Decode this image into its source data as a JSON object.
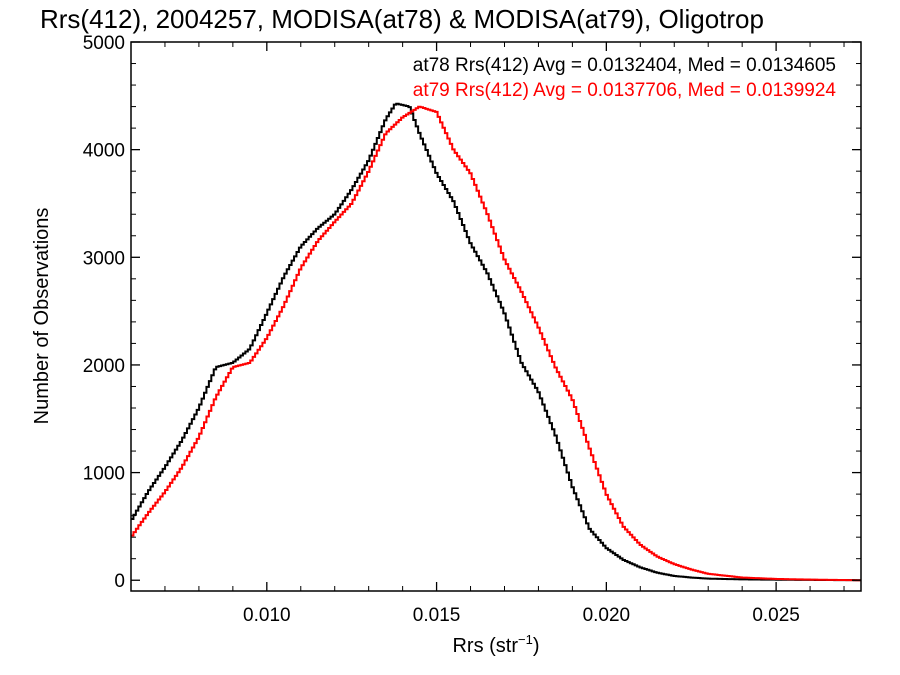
{
  "chart_data": {
    "type": "line",
    "title": "Rrs(412), 2004257, MODISA(at78) & MODISA(at79), Oligotrop",
    "xlabel": "Rrs (str",
    "xlabel_sup": "−1",
    "xlabel_close": ")",
    "ylabel": "Number of Observations",
    "xlim": [
      0.006,
      0.0275
    ],
    "ylim": [
      -100,
      5000
    ],
    "xticks": [
      0.01,
      0.015,
      0.02,
      0.025
    ],
    "xtick_labels": [
      "0.010",
      "0.015",
      "0.020",
      "0.025"
    ],
    "yticks": [
      0,
      1000,
      2000,
      3000,
      4000,
      5000
    ],
    "ytick_labels": [
      "0",
      "1000",
      "2000",
      "3000",
      "4000",
      "5000"
    ],
    "grid": false,
    "legend_position": "top-right",
    "series": [
      {
        "name": "at78",
        "color": "#000000",
        "legend_text": "at78 Rrs(412) Avg = 0.0132404, Med = 0.0134605",
        "x": [
          0.006,
          0.0065,
          0.007,
          0.0075,
          0.008,
          0.0085,
          0.009,
          0.0095,
          0.01,
          0.0105,
          0.011,
          0.0115,
          0.012,
          0.0125,
          0.013,
          0.0135,
          0.0138,
          0.0142,
          0.0145,
          0.015,
          0.0155,
          0.016,
          0.0165,
          0.017,
          0.0175,
          0.018,
          0.0185,
          0.019,
          0.0195,
          0.02,
          0.0205,
          0.021,
          0.0215,
          0.022,
          0.0225,
          0.023,
          0.024,
          0.025,
          0.026,
          0.0275
        ],
        "y": [
          550,
          820,
          1050,
          1300,
          1600,
          1980,
          2020,
          2150,
          2480,
          2820,
          3100,
          3270,
          3400,
          3630,
          3900,
          4280,
          4430,
          4400,
          4150,
          3780,
          3520,
          3130,
          2850,
          2480,
          2020,
          1750,
          1350,
          870,
          480,
          300,
          190,
          120,
          70,
          40,
          25,
          15,
          8,
          5,
          3,
          0
        ]
      },
      {
        "name": "at79",
        "color": "#ff0000",
        "legend_text": "at79 Rrs(412) Avg = 0.0137706, Med = 0.0139924",
        "x": [
          0.006,
          0.0065,
          0.007,
          0.0075,
          0.008,
          0.0085,
          0.009,
          0.0095,
          0.01,
          0.0105,
          0.011,
          0.0115,
          0.012,
          0.0125,
          0.013,
          0.0135,
          0.014,
          0.0145,
          0.015,
          0.0155,
          0.016,
          0.0165,
          0.017,
          0.0175,
          0.018,
          0.0185,
          0.019,
          0.0195,
          0.02,
          0.0205,
          0.021,
          0.0215,
          0.022,
          0.0225,
          0.023,
          0.024,
          0.025,
          0.026,
          0.0275
        ],
        "y": [
          400,
          620,
          820,
          1050,
          1330,
          1700,
          1980,
          2020,
          2250,
          2550,
          2900,
          3150,
          3330,
          3500,
          3800,
          4150,
          4300,
          4400,
          4350,
          4000,
          3780,
          3400,
          2980,
          2680,
          2350,
          1980,
          1680,
          1230,
          800,
          500,
          330,
          220,
          150,
          100,
          60,
          25,
          12,
          6,
          0
        ]
      }
    ]
  }
}
